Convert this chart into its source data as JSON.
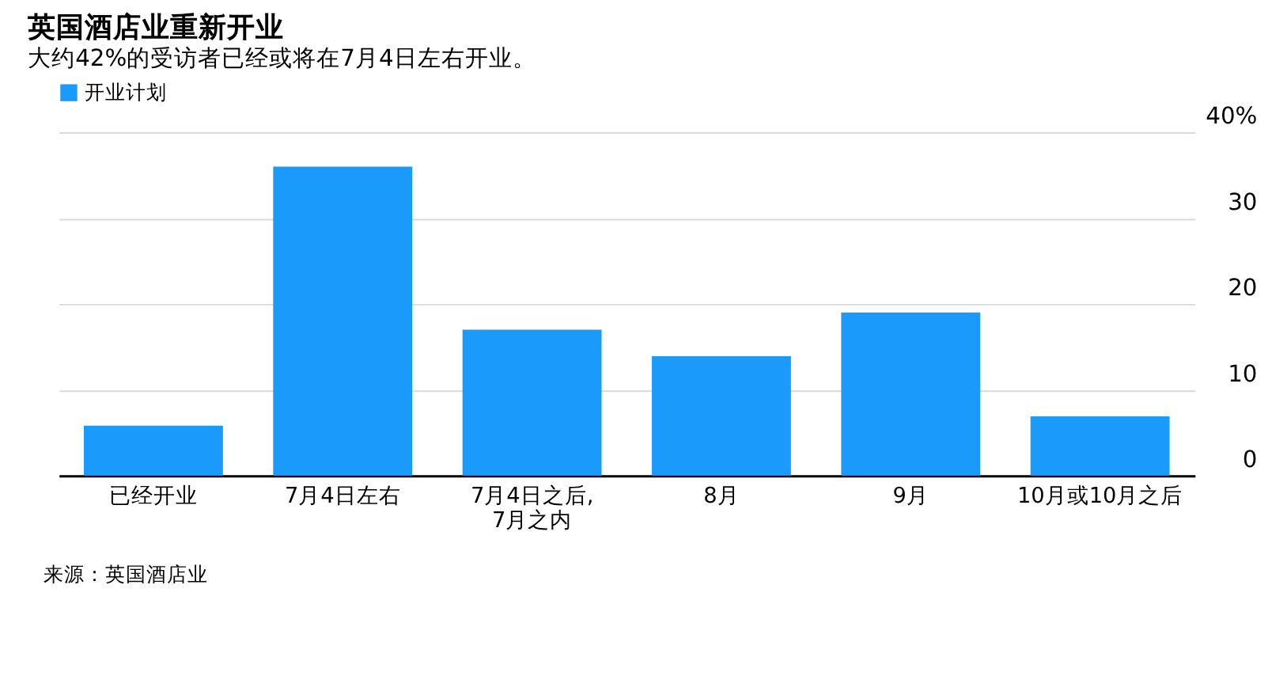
{
  "chart_data": {
    "type": "bar",
    "title": "英国酒店业重新开业",
    "subtitle": "大约42%的受访者已经或将在7月4日左右开业。",
    "categories": [
      "已经开业",
      "7月4日左右",
      "7月4日之后,\n7月之内",
      "8月",
      "9月",
      "10月或10月之后"
    ],
    "series": [
      {
        "name": "开业计划",
        "color": "#1a9bfc",
        "values": [
          5.8,
          36.0,
          17.0,
          13.9,
          19.0,
          6.9
        ]
      }
    ],
    "ylim": [
      0,
      40
    ],
    "yticks": [
      0,
      10,
      20,
      30,
      {
        "value": 40,
        "label": "40%"
      }
    ],
    "grid": "y",
    "legend": "top left",
    "annotations": [
      "来源：英国酒店业"
    ]
  }
}
